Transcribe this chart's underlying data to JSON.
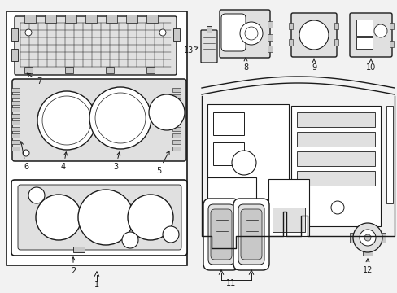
{
  "background_color": "#f2f2f2",
  "line_color": "#1a1a1a",
  "white": "#ffffff",
  "light_gray": "#e0e0e0",
  "mid_gray": "#c8c8c8",
  "dark_gray": "#a0a0a0"
}
